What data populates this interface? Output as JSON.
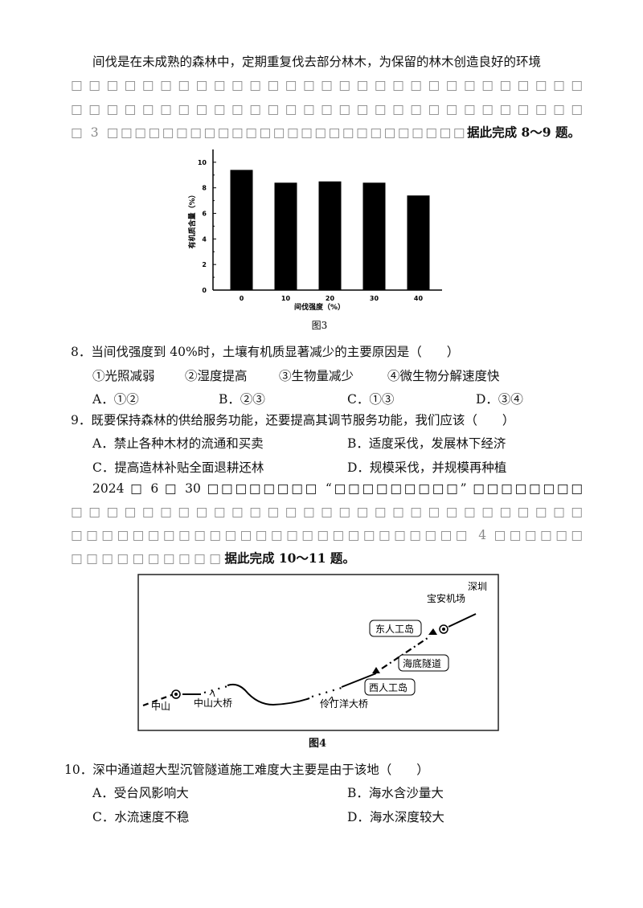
{
  "passage1": {
    "line1": "间伐是在未成熟的森林中，定期重复伐去部分林木，为保留的林木创造良好的环境",
    "line2": "□□□□□□□□□□□□□□□□□□□□□□□□□□□□□",
    "line3": "□□□□□□□□□□□□□□□□□□□□□□□□□□□□□",
    "line4_pre": "□ 3 □□□□□□□□□□□□□□□□□□□□□□□□□□",
    "line4_bold": "据此完成 8～9 题。"
  },
  "chart_data": {
    "type": "bar",
    "categories": [
      "0",
      "10",
      "20",
      "30",
      "40"
    ],
    "values": [
      9.4,
      8.4,
      8.5,
      8.4,
      7.4
    ],
    "xlabel": "间伐强度（%）",
    "ylabel": "有机质含量（%）",
    "ylim": [
      0,
      11
    ],
    "yticks": [
      "0",
      "2",
      "4",
      "6",
      "8",
      "10"
    ],
    "caption": "图3",
    "bar_color": "#000000"
  },
  "q8": {
    "stem": "8．当间伐强度到 40%时，土壤有机质显著减少的主要原因是（　　）",
    "statements": [
      "①光照减弱",
      "②湿度提高",
      "③生物量减少",
      "④微生物分解速度快"
    ],
    "options": [
      "A．①②",
      "B．②③",
      "C．①③",
      "D．③④"
    ]
  },
  "q9": {
    "stem": "9．既要保持森林的供给服务功能，还要提高其调节服务功能，我们应该（　　）",
    "options": [
      "A．禁止各种木材的流通和买卖",
      "B．适度采伐，发展林下经济",
      "C．提高造林补贴全面退耕还林",
      "D．规模采伐，并规模再种植"
    ]
  },
  "passage2": {
    "line1": "2024 □ 6 □ 30 □□□□□□□□ “□□□□□□□□□” □□□□□□□□",
    "line2": "□□□□□□□□□□□□□□□□□□□□□□□□□□□□□",
    "line3": "□□□□□□□□□□□□□□□□□□□□□□□□□□ 4 □□□□□□",
    "line4_pre": "□□□□□□□□□□",
    "line4_bold": "据此完成 10～11 题。"
  },
  "map": {
    "labels": {
      "shenzhen": "深圳",
      "airport": "宝安机场",
      "east_island": "东人工岛",
      "tunnel": "海底隧道",
      "west_island": "西人工岛",
      "zhongshan": "中山",
      "zhongshan_bridge": "中山大桥",
      "lingdingyang_bridge": "伶仃洋大桥"
    },
    "caption": "图4"
  },
  "q10": {
    "stem": "10．深中通道超大型沉管隧道施工难度大主要是由于该地（　　）",
    "options": [
      "A．受台风影响大",
      "B．海水含沙量大",
      "C．水流速度不稳",
      "D．海水深度较大"
    ]
  }
}
